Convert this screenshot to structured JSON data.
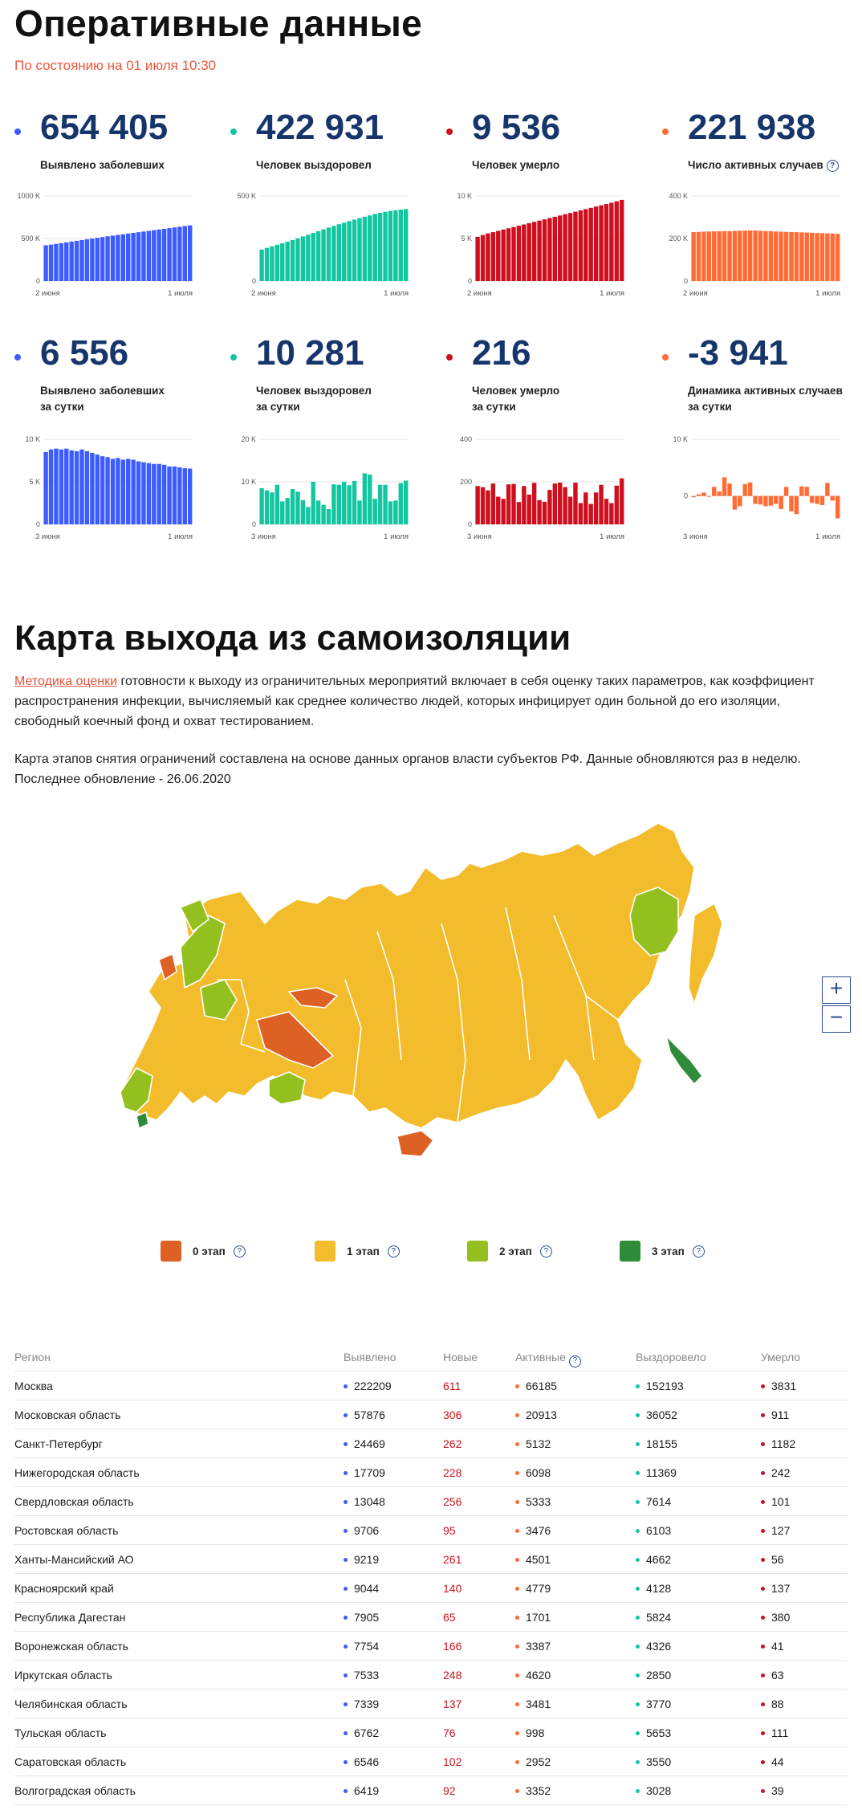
{
  "header": {
    "title": "Оперативные данные",
    "as_of": "По состоянию на 01 июля 10:30"
  },
  "colors": {
    "cases": "#3d5cff",
    "recovered": "#12c7a0",
    "deaths": "#cf0f1d",
    "active": "#ff6b35",
    "title_blue": "#16366b",
    "stage0": "#dd6124",
    "stage1": "#f3bc2c",
    "stage2": "#93c01f",
    "stage3": "#2e8b3a"
  },
  "stats": [
    {
      "value": "654 405",
      "label1": "Выявлено заболевших",
      "label2": "",
      "help": false
    },
    {
      "value": "422 931",
      "label1": "Человек выздоровел",
      "label2": "",
      "help": false
    },
    {
      "value": "9 536",
      "label1": "Человек умерло",
      "label2": "",
      "help": false
    },
    {
      "value": "221 938",
      "label1": "Число активных случаев",
      "label2": "",
      "help": true
    },
    {
      "value": "6 556",
      "label1": "Выявлено заболевших",
      "label2": "за сутки",
      "help": false
    },
    {
      "value": "10 281",
      "label1": "Человек выздоровел",
      "label2": "за сутки",
      "help": false
    },
    {
      "value": "216",
      "label1": "Человек умерло",
      "label2": "за сутки",
      "help": false
    },
    {
      "value": "-3 941",
      "label1": "Динамика активных случаев",
      "label2": "за сутки",
      "help": false
    }
  ],
  "chart_data": [
    {
      "type": "bar",
      "series_name": "",
      "y_ticks": [
        "1000 K",
        "500 K",
        "0"
      ],
      "ylim": [
        0,
        1000000
      ],
      "x_labels": [
        "2 июня",
        "1 июля"
      ],
      "values": [
        420000,
        428000,
        437000,
        446000,
        455000,
        464000,
        473000,
        482000,
        491000,
        500000,
        509000,
        517000,
        526000,
        534000,
        542000,
        550000,
        558000,
        566000,
        574000,
        582000,
        590000,
        598000,
        606000,
        614000,
        622000,
        630000,
        638000,
        646000,
        654405
      ]
    },
    {
      "type": "bar",
      "series_name": "",
      "y_ticks": [
        "500 K",
        "0"
      ],
      "ylim": [
        0,
        500000
      ],
      "x_labels": [
        "2 июня",
        "1 июля"
      ],
      "values": [
        185000,
        195000,
        204000,
        213000,
        222000,
        231000,
        241000,
        251000,
        262000,
        272000,
        283000,
        293000,
        304000,
        314000,
        324000,
        334000,
        343000,
        352000,
        361000,
        370000,
        378000,
        386000,
        394000,
        401000,
        407000,
        412000,
        416000,
        420000,
        422931
      ]
    },
    {
      "type": "bar",
      "series_name": "",
      "y_ticks": [
        "10 K",
        "5 K",
        "0"
      ],
      "ylim": [
        0,
        10000
      ],
      "x_labels": [
        "2 июня",
        "1 июля"
      ],
      "values": [
        5200,
        5400,
        5600,
        5750,
        5900,
        6050,
        6200,
        6350,
        6500,
        6650,
        6800,
        6950,
        7100,
        7250,
        7400,
        7550,
        7700,
        7850,
        8000,
        8150,
        8300,
        8450,
        8600,
        8750,
        8900,
        9050,
        9200,
        9370,
        9536
      ]
    },
    {
      "type": "bar",
      "series_name": "",
      "y_ticks": [
        "400 K",
        "200 K",
        "0"
      ],
      "ylim": [
        0,
        400000
      ],
      "x_labels": [
        "2 июня",
        "1 июля"
      ],
      "values": [
        230000,
        231000,
        232000,
        233000,
        233500,
        234000,
        235000,
        235000,
        236000,
        237000,
        237000,
        237500,
        238000,
        236000,
        235000,
        234000,
        233000,
        232000,
        231000,
        230500,
        230000,
        229000,
        228000,
        227000,
        226000,
        225000,
        224000,
        223000,
        221938
      ]
    },
    {
      "type": "bar",
      "series_name": "",
      "y_ticks": [
        "10 K",
        "5 K",
        "0"
      ],
      "ylim": [
        0,
        10000
      ],
      "x_labels": [
        "3 июня",
        "1 июля"
      ],
      "values": [
        8500,
        8800,
        8900,
        8800,
        8900,
        8700,
        8600,
        8800,
        8600,
        8400,
        8200,
        8000,
        7900,
        7700,
        7800,
        7600,
        7700,
        7600,
        7400,
        7300,
        7200,
        7100,
        7100,
        7000,
        6800,
        6800,
        6700,
        6600,
        6556
      ]
    },
    {
      "type": "bar",
      "series_name": "",
      "y_ticks": [
        "20 K",
        "10 K",
        "0"
      ],
      "ylim": [
        0,
        20000
      ],
      "x_labels": [
        "3 июня",
        "1 июля"
      ],
      "values": [
        8500,
        8000,
        7500,
        9300,
        5400,
        6200,
        8300,
        7700,
        5700,
        4100,
        10000,
        5600,
        4600,
        3600,
        9400,
        9300,
        10000,
        9200,
        10200,
        5600,
        12000,
        11700,
        6000,
        9300,
        9300,
        5400,
        5600,
        9700,
        10281
      ]
    },
    {
      "type": "bar",
      "series_name": "",
      "y_ticks": [
        "400",
        "200",
        "0"
      ],
      "ylim": [
        0,
        400
      ],
      "x_labels": [
        "3 июня",
        "1 июля"
      ],
      "values": [
        180,
        175,
        160,
        192,
        130,
        120,
        188,
        190,
        105,
        180,
        140,
        195,
        114,
        106,
        162,
        192,
        196,
        175,
        130,
        196,
        100,
        150,
        96,
        150,
        186,
        120,
        100,
        182,
        216
      ]
    },
    {
      "type": "bar",
      "series_name": "",
      "y_ticks": [
        "10 K",
        "0"
      ],
      "ylim": [
        -5000,
        10000
      ],
      "x_labels": [
        "3 июня",
        "1 июля"
      ],
      "values": [
        -200,
        300,
        600,
        -100,
        1600,
        800,
        3300,
        2200,
        -2400,
        -1800,
        2100,
        2400,
        -1400,
        -1500,
        -1800,
        -1700,
        -1400,
        -2300,
        1600,
        -2700,
        -3200,
        1700,
        1600,
        -1200,
        -1400,
        -1600,
        2300,
        -800,
        -3941
      ]
    }
  ],
  "section2": {
    "title": "Карта выхода из самоизоляции",
    "link_text": "Методика оценки",
    "para1_rest": " готовности к выходу из ограничительных мероприятий включает в себя оценку таких параметров, как коэффициент распространения инфекции, вычисляемый как среднее количество людей, которых инфицирует один больной до его изоляции, свободный коечный фонд и охват тестированием.",
    "para2": "Карта этапов снятия ограничений составлена на основе данных органов власти субъектов РФ. Данные обновляются раз в неделю.",
    "para3": "Последнее обновление - 26.06.2020"
  },
  "zoom": {
    "plus": "+",
    "minus": "−"
  },
  "legend": [
    {
      "label": "0 этап",
      "help": "?"
    },
    {
      "label": "1 этап",
      "help": "?"
    },
    {
      "label": "2 этап",
      "help": "?"
    },
    {
      "label": "3 этап",
      "help": "?"
    }
  ],
  "table": {
    "headers": [
      "Регион",
      "Выявлено",
      "Новые",
      "Активные",
      "Выздоровело",
      "Умерло"
    ],
    "rows": [
      [
        "Москва",
        "222209",
        "611",
        "66185",
        "152193",
        "3831"
      ],
      [
        "Московская область",
        "57876",
        "306",
        "20913",
        "36052",
        "911"
      ],
      [
        "Санкт-Петербург",
        "24469",
        "262",
        "5132",
        "18155",
        "1182"
      ],
      [
        "Нижегородская область",
        "17709",
        "228",
        "6098",
        "11369",
        "242"
      ],
      [
        "Свердловская область",
        "13048",
        "256",
        "5333",
        "7614",
        "101"
      ],
      [
        "Ростовская область",
        "9706",
        "95",
        "3476",
        "6103",
        "127"
      ],
      [
        "Ханты-Мансийский АО",
        "9219",
        "261",
        "4501",
        "4662",
        "56"
      ],
      [
        "Красноярский край",
        "9044",
        "140",
        "4779",
        "4128",
        "137"
      ],
      [
        "Республика Дагестан",
        "7905",
        "65",
        "1701",
        "5824",
        "380"
      ],
      [
        "Воронежская область",
        "7754",
        "166",
        "3387",
        "4326",
        "41"
      ],
      [
        "Иркутская область",
        "7533",
        "248",
        "4620",
        "2850",
        "63"
      ],
      [
        "Челябинская область",
        "7339",
        "137",
        "3481",
        "3770",
        "88"
      ],
      [
        "Тульская область",
        "6762",
        "76",
        "998",
        "5653",
        "111"
      ],
      [
        "Саратовская область",
        "6546",
        "102",
        "2952",
        "3550",
        "44"
      ],
      [
        "Волгоградская область",
        "6419",
        "92",
        "3352",
        "3028",
        "39"
      ]
    ]
  }
}
